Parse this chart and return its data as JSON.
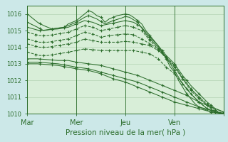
{
  "background_color": "#cce8e8",
  "plot_bg_color": "#d8eed8",
  "grid_color": "#aaccaa",
  "line_color": "#2d6e2d",
  "xlabel": "Pression niveau de la mer( hPa )",
  "ylim": [
    1010,
    1016.5
  ],
  "xlim": [
    0,
    96
  ],
  "xtick_positions": [
    0,
    24,
    48,
    72,
    96
  ],
  "xtick_labels": [
    "Mar",
    "Mer",
    "Jeu",
    "Ven",
    ""
  ],
  "ytick_positions": [
    1010,
    1011,
    1012,
    1013,
    1014,
    1015,
    1016
  ],
  "day_lines": [
    0,
    24,
    48,
    72
  ]
}
